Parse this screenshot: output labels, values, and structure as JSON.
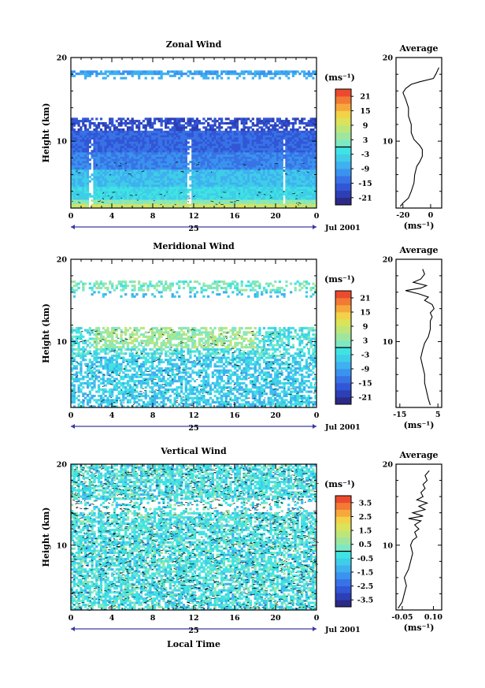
{
  "chart_data": [
    {
      "type": "heatmap",
      "title": "Zonal Wind",
      "ylabel": "Height (km)",
      "xlabel": "",
      "y_ticks": [
        "20",
        "10"
      ],
      "x_ticks": [
        "0",
        "4",
        "8",
        "12",
        "16",
        "20",
        "0"
      ],
      "day_label": "25",
      "date_label": "Jul 2001",
      "xlim": [
        0,
        24
      ],
      "ylim": [
        2,
        20
      ],
      "colorbar": {
        "unit": "(ms⁻¹)",
        "ticks": [
          "21",
          "15",
          "9",
          "3",
          "-3",
          "-9",
          "-15",
          "-21"
        ],
        "range": [
          -24,
          24
        ]
      },
      "profile": {
        "title": "Average",
        "x_ticks": [
          "-20",
          "0"
        ],
        "xlim": [
          -25,
          8
        ],
        "unit": "(ms⁻¹)",
        "points": [
          [
            -22,
            2.2
          ],
          [
            -20,
            2.6
          ],
          [
            -16,
            3.2
          ],
          [
            -14,
            4
          ],
          [
            -12,
            5
          ],
          [
            -11.5,
            6
          ],
          [
            -10,
            7
          ],
          [
            -8,
            7.5
          ],
          [
            -6,
            8.2
          ],
          [
            -6,
            9
          ],
          [
            -8,
            9.5
          ],
          [
            -12,
            10.2
          ],
          [
            -14,
            11
          ],
          [
            -14,
            12
          ],
          [
            -16,
            13
          ],
          [
            -16,
            14
          ],
          [
            -18,
            15
          ],
          [
            -20,
            15.8
          ],
          [
            -18,
            16.3
          ],
          [
            -14,
            16.8
          ],
          [
            -8,
            17.1
          ],
          [
            2,
            17.5
          ],
          [
            4,
            18.1
          ],
          [
            6,
            18.8
          ]
        ]
      }
    },
    {
      "type": "heatmap",
      "title": "Meridional Wind",
      "ylabel": "Height (km)",
      "xlabel": "",
      "y_ticks": [
        "20",
        "10"
      ],
      "x_ticks": [
        "0",
        "4",
        "8",
        "12",
        "16",
        "20",
        "0"
      ],
      "day_label": "25",
      "date_label": "Jul 2001",
      "xlim": [
        0,
        24
      ],
      "ylim": [
        2,
        20
      ],
      "colorbar": {
        "unit": "(ms⁻¹)",
        "ticks": [
          "21",
          "15",
          "9",
          "3",
          "-3",
          "-9",
          "-15",
          "-21"
        ],
        "range": [
          -24,
          24
        ]
      },
      "profile": {
        "title": "Average",
        "x_ticks": [
          "-15",
          "5"
        ],
        "xlim": [
          -17,
          7
        ],
        "unit": "(ms⁻¹)",
        "points": [
          [
            1,
            2.3
          ],
          [
            0,
            3
          ],
          [
            -1,
            4
          ],
          [
            -2,
            5
          ],
          [
            -2,
            6
          ],
          [
            -3,
            7
          ],
          [
            -4,
            8
          ],
          [
            -3,
            9
          ],
          [
            -2,
            9.8
          ],
          [
            0,
            10.6
          ],
          [
            1,
            11.5
          ],
          [
            1,
            12.5
          ],
          [
            2,
            13
          ],
          [
            1,
            13.5
          ],
          [
            3,
            14
          ],
          [
            2,
            14.5
          ],
          [
            -2,
            15
          ],
          [
            0,
            15.4
          ],
          [
            -5,
            15.8
          ],
          [
            -12,
            16.2
          ],
          [
            -4,
            16.5
          ],
          [
            -1,
            16.8
          ],
          [
            -8,
            17.2
          ],
          [
            -4,
            17.6
          ],
          [
            -2,
            18.2
          ],
          [
            -3,
            18.8
          ]
        ]
      }
    },
    {
      "type": "heatmap",
      "title": "Vertical Wind",
      "ylabel": "Height (km)",
      "xlabel": "Local Time",
      "y_ticks": [
        "20",
        "10"
      ],
      "x_ticks": [
        "0",
        "4",
        "8",
        "12",
        "16",
        "20",
        "0"
      ],
      "day_label": "25",
      "date_label": "Jul 2001",
      "xlim": [
        0,
        24
      ],
      "ylim": [
        2,
        20
      ],
      "colorbar": {
        "unit": "(ms⁻¹)",
        "ticks": [
          "3.5",
          "2.5",
          "1.5",
          "0.5",
          "-0.5",
          "-1.5",
          "-2.5",
          "-3.5"
        ],
        "range": [
          -4,
          4
        ]
      },
      "profile": {
        "title": "Average",
        "x_ticks": [
          "-0.05",
          "0.10"
        ],
        "xlim": [
          -0.08,
          0.14
        ],
        "unit": "(ms⁻¹)",
        "points": [
          [
            -0.07,
            2.2
          ],
          [
            -0.05,
            3
          ],
          [
            -0.04,
            4
          ],
          [
            -0.03,
            5
          ],
          [
            -0.04,
            6
          ],
          [
            -0.02,
            7
          ],
          [
            -0.01,
            8
          ],
          [
            0.0,
            9
          ],
          [
            -0.01,
            10
          ],
          [
            0.0,
            10.6
          ],
          [
            0.02,
            11
          ],
          [
            0.01,
            11.6
          ],
          [
            0.03,
            12
          ],
          [
            0.01,
            12.5
          ],
          [
            0.04,
            13
          ],
          [
            -0.02,
            13.3
          ],
          [
            0.05,
            13.6
          ],
          [
            0.0,
            14
          ],
          [
            0.06,
            14.4
          ],
          [
            0.03,
            14.8
          ],
          [
            0.07,
            15.2
          ],
          [
            0.02,
            15.6
          ],
          [
            0.05,
            16
          ],
          [
            0.04,
            16.5
          ],
          [
            0.06,
            17
          ],
          [
            0.05,
            17.5
          ],
          [
            0.07,
            18
          ],
          [
            0.06,
            18.6
          ],
          [
            0.08,
            19.2
          ]
        ]
      }
    }
  ]
}
